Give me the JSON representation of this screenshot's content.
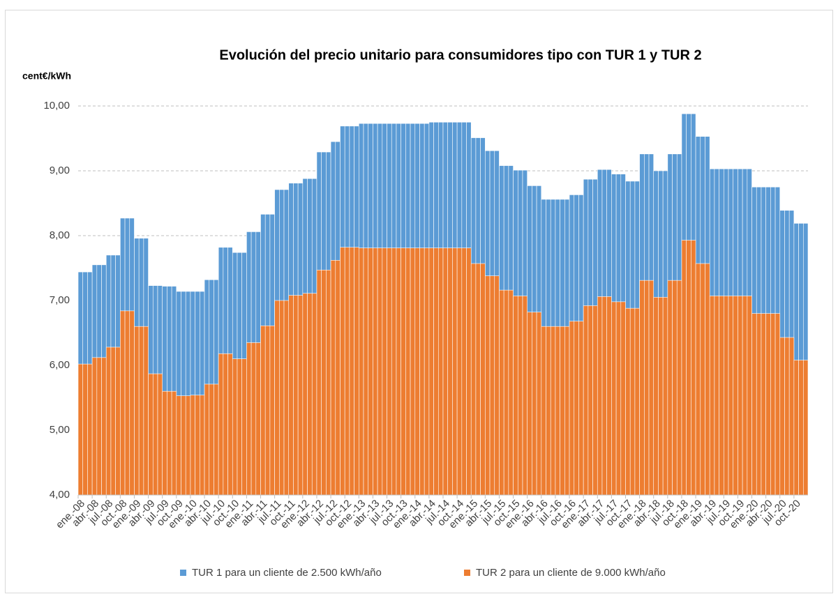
{
  "chart_data": {
    "type": "bar",
    "title": "Evolución del precio unitario para consumidores tipo con TUR 1 y TUR 2",
    "y_label": "cent€/kWh",
    "categories": [
      "ene.-08",
      null,
      null,
      "abr.-08",
      null,
      null,
      "jul.-08",
      null,
      null,
      "oct.-08",
      null,
      null,
      "ene.-09",
      null,
      null,
      "abr.-09",
      null,
      null,
      "jul.-09",
      null,
      null,
      "oct.-09",
      null,
      null,
      "ene.-10",
      null,
      null,
      "abr.-10",
      null,
      null,
      "jul.-10",
      null,
      null,
      "oct.-10",
      null,
      null,
      "ene.-11",
      null,
      null,
      "abr.-11",
      null,
      null,
      "jul.-11",
      null,
      null,
      "oct.-11",
      null,
      null,
      "ene.-12",
      null,
      null,
      "abr.-12",
      null,
      null,
      "jul.-12",
      null,
      null,
      "oct.-12",
      null,
      null,
      "ene.-13",
      null,
      null,
      "abr.-13",
      null,
      null,
      "jul.-13",
      null,
      null,
      "oct.-13",
      null,
      null,
      "ene.-14",
      null,
      null,
      "abr.-14",
      null,
      null,
      "jul.-14",
      null,
      null,
      "oct.-14",
      null,
      null,
      "ene.-15",
      null,
      null,
      "abr.-15",
      null,
      null,
      "jul.-15",
      null,
      null,
      "oct.-15",
      null,
      null,
      "ene.-16",
      null,
      null,
      "abr.-16",
      null,
      null,
      "jul.-16",
      null,
      null,
      "oct.-16",
      null,
      null,
      "ene.-17",
      null,
      null,
      "abr.-17",
      null,
      null,
      "jul.-17",
      null,
      null,
      "oct.-17",
      null,
      null,
      "ene.-18",
      null,
      null,
      "abr.-18",
      null,
      null,
      "jul.-18",
      null,
      null,
      "oct.-18",
      null,
      null,
      "ene.-19",
      null,
      null,
      "abr.-19",
      null,
      null,
      "jul.-19",
      null,
      null,
      "oct.-19",
      null,
      null,
      "ene.-20",
      null,
      null,
      "abr.-20",
      null,
      null,
      "jul.-20",
      null,
      null,
      "oct.-20",
      null,
      null
    ],
    "series": [
      {
        "name": "TUR 1 para un cliente de 2.500 kWh/año",
        "color": "#5b9bd5",
        "values": [
          7.44,
          7.44,
          7.44,
          7.55,
          7.55,
          7.55,
          7.7,
          7.7,
          7.7,
          8.27,
          8.27,
          8.27,
          7.96,
          7.96,
          7.96,
          7.23,
          7.23,
          7.23,
          7.22,
          7.22,
          7.22,
          7.14,
          7.14,
          7.14,
          7.14,
          7.14,
          7.14,
          7.32,
          7.32,
          7.32,
          7.82,
          7.82,
          7.82,
          7.74,
          7.74,
          7.74,
          8.06,
          8.06,
          8.06,
          8.33,
          8.33,
          8.33,
          8.71,
          8.71,
          8.71,
          8.81,
          8.81,
          8.81,
          8.88,
          8.88,
          8.88,
          9.29,
          9.29,
          9.29,
          9.45,
          9.45,
          9.69,
          9.69,
          9.69,
          9.69,
          9.73,
          9.73,
          9.73,
          9.73,
          9.73,
          9.73,
          9.73,
          9.73,
          9.73,
          9.73,
          9.73,
          9.73,
          9.73,
          9.73,
          9.73,
          9.75,
          9.75,
          9.75,
          9.75,
          9.75,
          9.75,
          9.75,
          9.75,
          9.75,
          9.51,
          9.51,
          9.51,
          9.31,
          9.31,
          9.31,
          9.08,
          9.08,
          9.08,
          9.01,
          9.01,
          9.01,
          8.77,
          8.77,
          8.77,
          8.56,
          8.56,
          8.56,
          8.56,
          8.56,
          8.56,
          8.63,
          8.63,
          8.63,
          8.87,
          8.87,
          8.87,
          9.02,
          9.02,
          9.02,
          8.95,
          8.95,
          8.95,
          8.84,
          8.84,
          8.84,
          9.26,
          9.26,
          9.26,
          9.0,
          9.0,
          9.0,
          9.26,
          9.26,
          9.26,
          9.88,
          9.88,
          9.88,
          9.53,
          9.53,
          9.53,
          9.03,
          9.03,
          9.03,
          9.03,
          9.03,
          9.03,
          9.03,
          9.03,
          9.03,
          8.75,
          8.75,
          8.75,
          8.75,
          8.75,
          8.75,
          8.39,
          8.39,
          8.39,
          8.19,
          8.19,
          8.19
        ]
      },
      {
        "name": "TUR 2 para un cliente de 9.000 kWh/año",
        "color": "#ed7d31",
        "values": [
          6.02,
          6.02,
          6.02,
          6.12,
          6.12,
          6.12,
          6.28,
          6.28,
          6.28,
          6.84,
          6.84,
          6.84,
          6.6,
          6.6,
          6.6,
          5.87,
          5.87,
          5.87,
          5.6,
          5.6,
          5.6,
          5.53,
          5.53,
          5.53,
          5.54,
          5.54,
          5.54,
          5.71,
          5.71,
          5.71,
          6.18,
          6.18,
          6.18,
          6.1,
          6.1,
          6.1,
          6.35,
          6.35,
          6.35,
          6.61,
          6.61,
          6.61,
          7.0,
          7.0,
          7.0,
          7.08,
          7.08,
          7.08,
          7.11,
          7.11,
          7.11,
          7.47,
          7.47,
          7.47,
          7.62,
          7.62,
          7.82,
          7.82,
          7.82,
          7.82,
          7.81,
          7.81,
          7.81,
          7.81,
          7.81,
          7.81,
          7.81,
          7.81,
          7.81,
          7.81,
          7.81,
          7.81,
          7.81,
          7.81,
          7.81,
          7.81,
          7.81,
          7.81,
          7.81,
          7.81,
          7.81,
          7.81,
          7.81,
          7.81,
          7.57,
          7.57,
          7.57,
          7.38,
          7.38,
          7.38,
          7.16,
          7.16,
          7.16,
          7.07,
          7.07,
          7.07,
          6.82,
          6.82,
          6.82,
          6.6,
          6.6,
          6.6,
          6.6,
          6.6,
          6.6,
          6.68,
          6.68,
          6.68,
          6.92,
          6.92,
          6.92,
          7.06,
          7.06,
          7.06,
          6.98,
          6.98,
          6.98,
          6.88,
          6.88,
          6.88,
          7.31,
          7.31,
          7.31,
          7.05,
          7.05,
          7.05,
          7.31,
          7.31,
          7.31,
          7.93,
          7.93,
          7.93,
          7.57,
          7.57,
          7.57,
          7.07,
          7.07,
          7.07,
          7.07,
          7.07,
          7.07,
          7.07,
          7.07,
          7.07,
          6.8,
          6.8,
          6.8,
          6.8,
          6.8,
          6.8,
          6.43,
          6.43,
          6.43,
          6.08,
          6.08,
          6.08
        ]
      }
    ],
    "ylim": [
      4,
      10
    ],
    "yticks": [
      {
        "value": 4,
        "label": "4,00"
      },
      {
        "value": 5,
        "label": "5,00"
      },
      {
        "value": 6,
        "label": "6,00"
      },
      {
        "value": 7,
        "label": "7,00"
      },
      {
        "value": 8,
        "label": "8,00"
      },
      {
        "value": 9,
        "label": "9,00"
      },
      {
        "value": 10,
        "label": "10,00"
      }
    ],
    "grid": true,
    "legend": "bottom"
  }
}
